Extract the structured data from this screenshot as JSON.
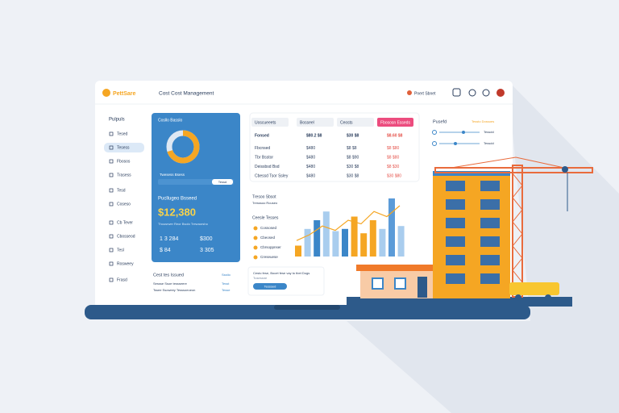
{
  "header": {
    "logo": "PettSare",
    "title": "Cost Cost Management",
    "user": "Pnert Sbnet"
  },
  "sidebar": {
    "title": "Pulpuls",
    "items": [
      "Tesed",
      "Tesess",
      "Fbosos",
      "Trasess",
      "Tesd",
      "Coseso",
      "Cb Tever",
      "Cbosseod",
      "Tesl",
      "Rosweey",
      "Frasd"
    ]
  },
  "summary": {
    "title": "Cosllo Basslo",
    "donut": 70,
    "caption": "Twesess Bsess",
    "button": "Tessd",
    "label": "Pucllugeo Bsseed",
    "amount": "$12,380",
    "note": "Thousrwer Reor Bsolo Trewaorsho",
    "figures": [
      [
        "1 3 284",
        "$300"
      ],
      [
        "$ 84",
        "3 305"
      ]
    ]
  },
  "table": {
    "headers": [
      "Uoscueeets",
      "Bosseel",
      "Ceosts",
      "Fbososn Esseds"
    ],
    "rows": [
      [
        "Fonsed",
        "$80.2 $8",
        "$30 $8",
        "$8.60 $8"
      ],
      [
        "Fbcnsed",
        "$480",
        "$8 $8",
        "$8 $80"
      ],
      [
        "Tbr Bsstor",
        "$480",
        "$8 $90",
        "$8 $80"
      ],
      [
        "Deissbsd Bsd",
        "$480",
        "$30 $8",
        "$8 $30"
      ],
      [
        "Cbessd Tsor Ssley",
        "$480",
        "$30 $8",
        "$30 $80"
      ]
    ]
  },
  "panel": {
    "title": "Pusefd",
    "link": "Tessto Dossoes",
    "sliders": [
      {
        "label": "Tessdd",
        "value": 60
      },
      {
        "label": "Tessdd",
        "value": 40
      }
    ]
  },
  "chart": {
    "type": "bar",
    "title": "Tresoo Sbsot",
    "subtitle": "Tresssoo Rouseo",
    "legend_title": "Ceesle Tesses",
    "legend": [
      "Cossosed",
      "Cbeosed",
      "Cbrsoppnser",
      "Creseuese"
    ],
    "values": [
      15,
      38,
      50,
      62,
      35,
      38,
      55,
      32,
      50,
      38,
      80,
      42
    ],
    "colors": [
      "#f5a623",
      "#a9cdee",
      "#3b86c8",
      "#a9cdee",
      "#a9cdee",
      "#3b86c8",
      "#f5a623",
      "#f5a623",
      "#f5a623",
      "#a9cdee",
      "#5b9bd8",
      "#a9cdee"
    ],
    "trend": [
      22,
      30,
      42,
      36,
      50,
      45,
      62,
      55,
      70
    ]
  },
  "issues": {
    "title": "Cest tes Issued",
    "link": "Ssstio",
    "rows": [
      [
        "Sessse Ssoe tessseere",
        "Tesst"
      ],
      [
        "Tssee Ssoweey Tesssoeoeon",
        "Tesse"
      ]
    ]
  },
  "notice": {
    "text": "Cesto fese, Bocet fese vay to tbet Dogs",
    "sub": "Tusessne",
    "button": "Tesssed"
  }
}
